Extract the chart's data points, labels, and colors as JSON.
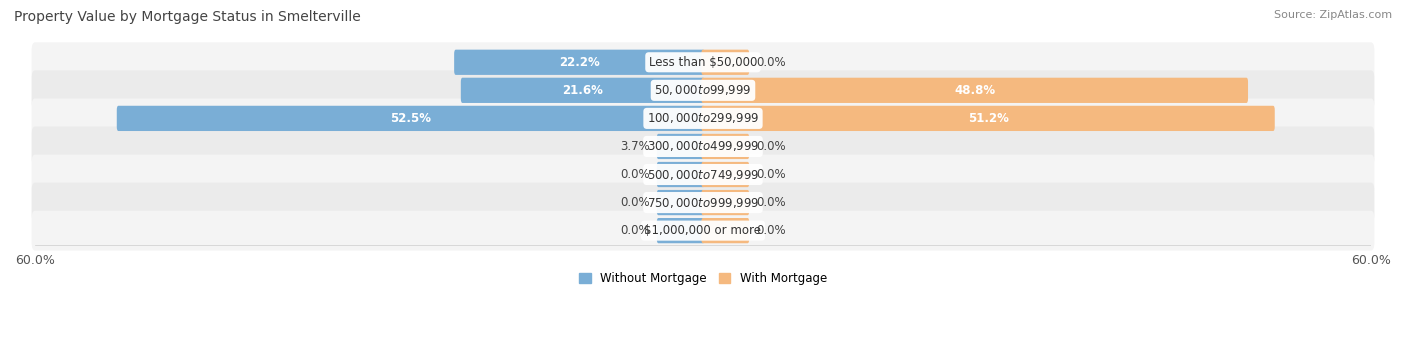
{
  "title": "Property Value by Mortgage Status in Smelterville",
  "source": "Source: ZipAtlas.com",
  "categories": [
    "Less than $50,000",
    "$50,000 to $99,999",
    "$100,000 to $299,999",
    "$300,000 to $499,999",
    "$500,000 to $749,999",
    "$750,000 to $999,999",
    "$1,000,000 or more"
  ],
  "without_mortgage": [
    22.2,
    21.6,
    52.5,
    3.7,
    0.0,
    0.0,
    0.0
  ],
  "with_mortgage": [
    0.0,
    48.8,
    51.2,
    0.0,
    0.0,
    0.0,
    0.0
  ],
  "color_without": "#7aaed6",
  "color_with": "#f5b97f",
  "axis_limit": 60.0,
  "min_bar_width": 4.0,
  "title_fontsize": 10,
  "label_fontsize": 8.5,
  "tick_fontsize": 9,
  "source_fontsize": 8,
  "row_colors": [
    "#f4f4f4",
    "#ebebeb"
  ]
}
